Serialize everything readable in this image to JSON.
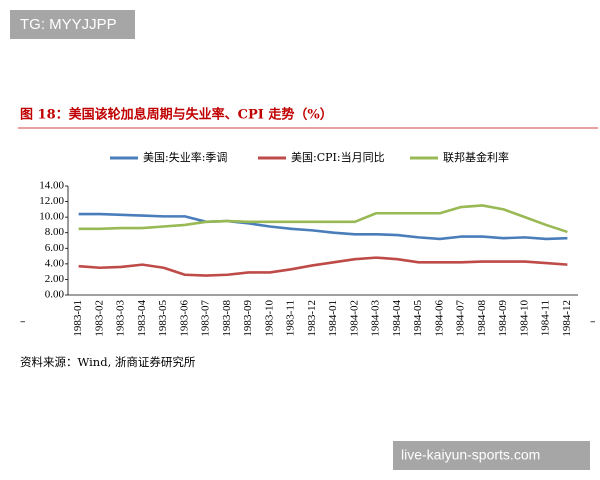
{
  "watermarks": [
    "TG: MYYJJPP",
    "live-kaiyun-sports.com"
  ],
  "chart_data": {
    "type": "line",
    "title": "图 18：美国该轮加息周期与失业率、CPI 走势（%）",
    "source": "资料来源：Wind, 浙商证券研究所",
    "categories": [
      "1983-01",
      "1983-02",
      "1983-03",
      "1983-04",
      "1983-05",
      "1983-06",
      "1983-07",
      "1983-08",
      "1983-09",
      "1983-10",
      "1983-11",
      "1983-12",
      "1984-01",
      "1984-02",
      "1984-03",
      "1984-04",
      "1984-05",
      "1984-06",
      "1984-07",
      "1984-08",
      "1984-09",
      "1984-10",
      "1984-11",
      "1984-12"
    ],
    "series": [
      {
        "name": "美国:失业率:季调",
        "color": "#4a7ebb",
        "values": [
          10.4,
          10.4,
          10.3,
          10.2,
          10.1,
          10.1,
          9.4,
          9.5,
          9.2,
          8.8,
          8.5,
          8.3,
          8.0,
          7.8,
          7.8,
          7.7,
          7.4,
          7.2,
          7.5,
          7.5,
          7.3,
          7.4,
          7.2,
          7.3
        ]
      },
      {
        "name": "美国:CPI:当月同比",
        "color": "#be4b48",
        "values": [
          3.7,
          3.5,
          3.6,
          3.9,
          3.5,
          2.6,
          2.5,
          2.6,
          2.9,
          2.9,
          3.3,
          3.8,
          4.2,
          4.6,
          4.8,
          4.6,
          4.2,
          4.2,
          4.2,
          4.3,
          4.3,
          4.3,
          4.1,
          3.9
        ]
      },
      {
        "name": "联邦基金利率",
        "color": "#98b954",
        "values": [
          8.5,
          8.5,
          8.6,
          8.6,
          8.8,
          9.0,
          9.4,
          9.5,
          9.4,
          9.4,
          9.4,
          9.4,
          9.4,
          9.4,
          10.5,
          10.5,
          10.5,
          10.5,
          11.3,
          11.5,
          11.0,
          10.0,
          9.0,
          8.1
        ]
      }
    ],
    "ylim": [
      0,
      14
    ],
    "yticks": [
      {
        "value": 0,
        "label": "0.00"
      },
      {
        "value": 2,
        "label": "2.00"
      },
      {
        "value": 4,
        "label": "4.00"
      },
      {
        "value": 6,
        "label": "6.00"
      },
      {
        "value": 8,
        "label": "8.00"
      },
      {
        "value": 10,
        "label": "10.00"
      },
      {
        "value": 12,
        "label": "12.00"
      },
      {
        "value": 14,
        "label": "14.00"
      }
    ],
    "grid": false
  }
}
